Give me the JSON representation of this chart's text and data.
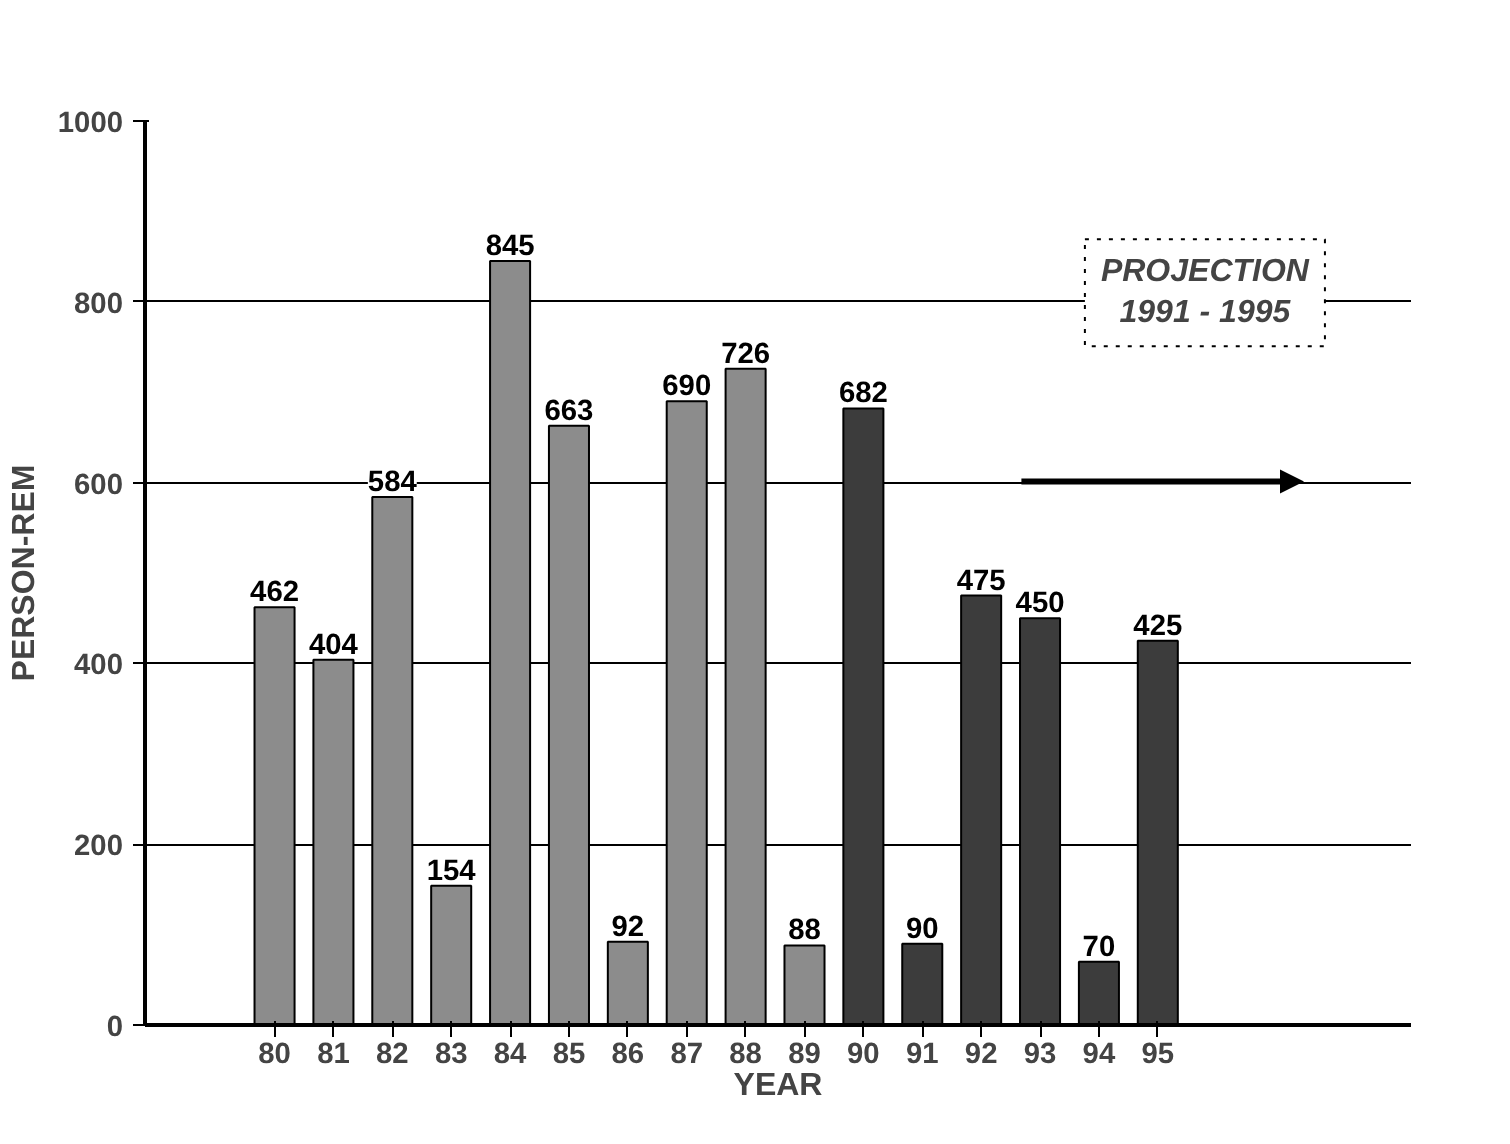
{
  "chart_data": {
    "type": "bar",
    "xlabel": "YEAR",
    "ylabel": "PERSON-REM",
    "categories": [
      "80",
      "81",
      "82",
      "83",
      "84",
      "85",
      "86",
      "87",
      "88",
      "89",
      "90",
      "91",
      "92",
      "93",
      "94",
      "95"
    ],
    "values": [
      462,
      404,
      584,
      154,
      845,
      663,
      92,
      690,
      726,
      88,
      682,
      90,
      475,
      450,
      70,
      425
    ],
    "colors": [
      "#8c8c8c",
      "#8c8c8c",
      "#8c8c8c",
      "#8c8c8c",
      "#8c8c8c",
      "#8c8c8c",
      "#8c8c8c",
      "#8c8c8c",
      "#8c8c8c",
      "#8c8c8c",
      "#3c3c3c",
      "#3c3c3c",
      "#3c3c3c",
      "#3c3c3c",
      "#3c3c3c",
      "#3c3c3c"
    ],
    "ylim": [
      0,
      1000
    ],
    "yticks": [
      0,
      200,
      400,
      600,
      800,
      1000
    ],
    "grid": "y",
    "data_labels": true,
    "annotations": [
      "PROJECTION\n1991 - 1995"
    ]
  }
}
